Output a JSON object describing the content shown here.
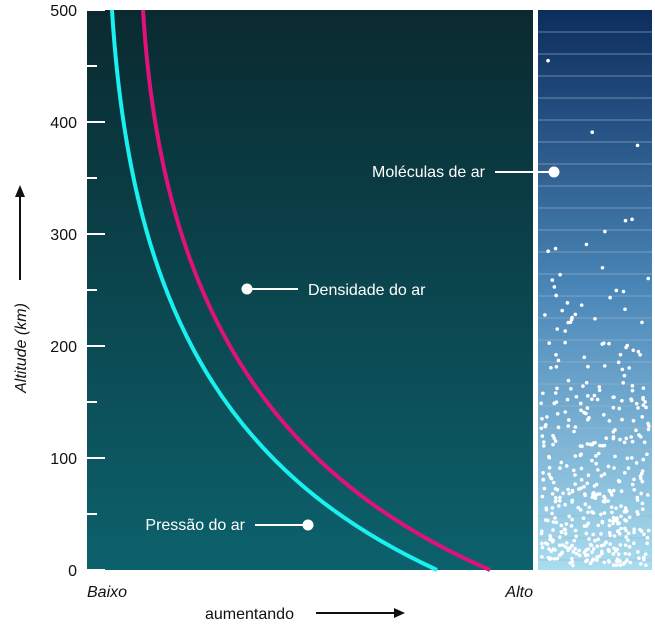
{
  "chart_data": {
    "type": "line",
    "ylabel": "Altitude (km)",
    "ylim": [
      0,
      500
    ],
    "yticks": [
      0,
      100,
      200,
      300,
      400,
      500
    ],
    "x_start_label": "Baixo",
    "x_end_label": "Alto",
    "xlabel": "aumentando",
    "annotations": [
      "Densidade do ar",
      "Pressão do ar",
      "Moléculas de ar"
    ]
  }
}
